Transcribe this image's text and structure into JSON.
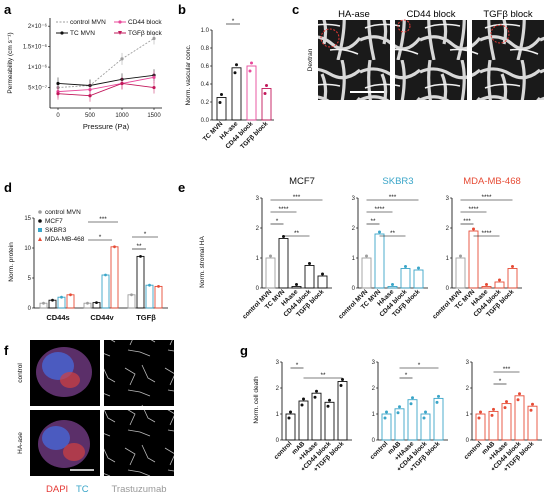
{
  "panel_labels": {
    "a": "a",
    "b": "b",
    "c": "c",
    "d": "d",
    "e": "e",
    "f": "f",
    "g": "g"
  },
  "colors": {
    "control": "#9e9e9e",
    "tc": "#111111",
    "cd44": "#e8489a",
    "tgfb": "#c2185b",
    "haase": "#e8489a",
    "skbr3": "#3aa5c8",
    "mda": "#e64b35"
  },
  "panel_a": {
    "ylabel": "Permeability (cm s⁻¹)",
    "xlabel": "Pressure (Pa)",
    "xticks": [
      "0",
      "500",
      "1000",
      "1500"
    ],
    "yticks": [
      "2×10⁻⁶",
      "1.5×10⁻⁶",
      "1×10⁻⁶",
      "5×10⁻⁷"
    ],
    "legend": {
      "control": "control MVN",
      "tc": "TC MVN",
      "cd44": "CD44 block",
      "tgfb": "TGFβ block"
    }
  },
  "panel_b": {
    "ylabel": "Norm. vascular conc.",
    "yticks": [
      "0.0",
      "0.2",
      "0.4",
      "0.6",
      "0.8",
      "1.0"
    ],
    "categories": [
      "TC MVN",
      "HA-ase",
      "CD44 block",
      "TGFβ block"
    ],
    "sig": "*"
  },
  "panel_c": {
    "images": [
      "HA-ase",
      "CD44 block",
      "TGFβ block"
    ],
    "side_label": "Dextran"
  },
  "panel_d": {
    "ylabel": "Norm. protein",
    "yticks": [
      "0",
      "5",
      "10",
      "15"
    ],
    "groups": [
      "CD44s",
      "CD44v",
      "TGFβ"
    ],
    "legend": [
      "control MVN",
      "MCF7",
      "SKBR3",
      "MDA-MB-468"
    ],
    "sig": [
      "***",
      "*",
      "*",
      "**"
    ]
  },
  "panel_e": {
    "ylabel": "Norm. stromal HA",
    "titles": [
      "MCF7",
      "SKBR3",
      "MDA-MB-468"
    ],
    "yticks": [
      "0",
      "1",
      "2",
      "3"
    ],
    "categories": [
      "control MVN",
      "TC MVN",
      "HAase",
      "CD44 block",
      "TGFβ block"
    ],
    "sig_mcf7": [
      "***",
      "****",
      "*",
      "**"
    ],
    "sig_skbr3": [
      "***",
      "****",
      "**",
      "**"
    ],
    "sig_mda": [
      "****",
      "****",
      "***",
      "****"
    ]
  },
  "panel_f": {
    "rows": [
      "control",
      "HA-ase"
    ],
    "legend_dapi": "DAPI",
    "legend_tc": "TC",
    "legend_tras": "Trastuzumab"
  },
  "panel_g": {
    "ylabel": "Norm. cell death",
    "yticks": [
      "0",
      "1",
      "2",
      "3"
    ],
    "categories": [
      "control",
      "mAB",
      "+HAase",
      "+CD44 block",
      "+TGFβ block"
    ],
    "sig_1": [
      "*",
      "**"
    ],
    "sig_2": [
      "*",
      "*"
    ],
    "sig_3": [
      "*",
      "***"
    ]
  },
  "chart_data": [
    {
      "type": "line",
      "xlabel": "Pressure (Pa)",
      "ylabel": "Permeability (cm s⁻¹)",
      "x": [
        0,
        500,
        1000,
        1500
      ],
      "series": [
        {
          "name": "control MVN",
          "values": [
            5e-07,
            5.5e-07,
            1.2e-06,
            1.7e-06
          ]
        },
        {
          "name": "TC MVN",
          "values": [
            6e-07,
            5.5e-07,
            7e-07,
            8e-07
          ]
        },
        {
          "name": "CD44 block",
          "values": [
            4e-07,
            4.5e-07,
            6e-07,
            7.5e-07
          ]
        },
        {
          "name": "TGFβ block",
          "values": [
            3.5e-07,
            3e-07,
            6e-07,
            5e-07
          ]
        }
      ]
    },
    {
      "type": "bar",
      "ylabel": "Norm. vascular conc.",
      "categories": [
        "TC MVN",
        "HA-ase",
        "CD44 block",
        "TGFβ block"
      ],
      "values": [
        0.25,
        0.58,
        0.6,
        0.35
      ],
      "ylim": [
        0,
        1
      ]
    },
    {
      "type": "bar",
      "ylabel": "Norm. protein",
      "categories": [
        "CD44s",
        "CD44v",
        "TGFβ"
      ],
      "series": [
        {
          "name": "control MVN",
          "values": [
            0.8,
            0.8,
            2.2
          ]
        },
        {
          "name": "MCF7",
          "values": [
            1.3,
            0.9,
            8.6
          ]
        },
        {
          "name": "SKBR3",
          "values": [
            1.8,
            5.5,
            3.8
          ]
        },
        {
          "name": "MDA-MB-468",
          "values": [
            2.2,
            10.2,
            3.6
          ]
        }
      ],
      "ylim": [
        0,
        15
      ]
    },
    {
      "type": "bar",
      "title": "MCF7",
      "ylabel": "Norm. stromal HA",
      "categories": [
        "control MVN",
        "TC MVN",
        "HAase",
        "CD44 block",
        "TGFβ block"
      ],
      "values": [
        1.0,
        1.65,
        0.05,
        0.75,
        0.4
      ],
      "ylim": [
        0,
        3
      ]
    },
    {
      "type": "bar",
      "title": "SKBR3",
      "categories": [
        "control MVN",
        "TC MVN",
        "HAase",
        "CD44 block",
        "TGFβ block"
      ],
      "values": [
        1.0,
        1.8,
        0.05,
        0.65,
        0.6
      ],
      "ylim": [
        0,
        3
      ]
    },
    {
      "type": "bar",
      "title": "MDA-MB-468",
      "categories": [
        "control MVN",
        "TC MVN",
        "HAase",
        "CD44 block",
        "TGFβ block"
      ],
      "values": [
        1.0,
        1.9,
        0.05,
        0.2,
        0.65
      ],
      "ylim": [
        0,
        3
      ]
    },
    {
      "type": "bar",
      "ylabel": "Norm. cell death",
      "categories": [
        "control",
        "mAB",
        "+HAase",
        "+CD44 block",
        "+TGFβ block"
      ],
      "values": [
        1.0,
        1.5,
        1.8,
        1.45,
        2.25
      ],
      "ylim": [
        0,
        3
      ]
    },
    {
      "type": "bar",
      "categories": [
        "control",
        "mAB",
        "+HAase",
        "+CD44 block",
        "+TGFβ block"
      ],
      "values": [
        1.0,
        1.2,
        1.55,
        1.0,
        1.6
      ],
      "ylim": [
        0,
        3
      ]
    },
    {
      "type": "bar",
      "categories": [
        "control",
        "mAB",
        "+HAase",
        "+CD44 block",
        "+TGFβ block"
      ],
      "values": [
        1.0,
        1.1,
        1.4,
        1.7,
        1.3
      ],
      "ylim": [
        0,
        3
      ]
    }
  ]
}
